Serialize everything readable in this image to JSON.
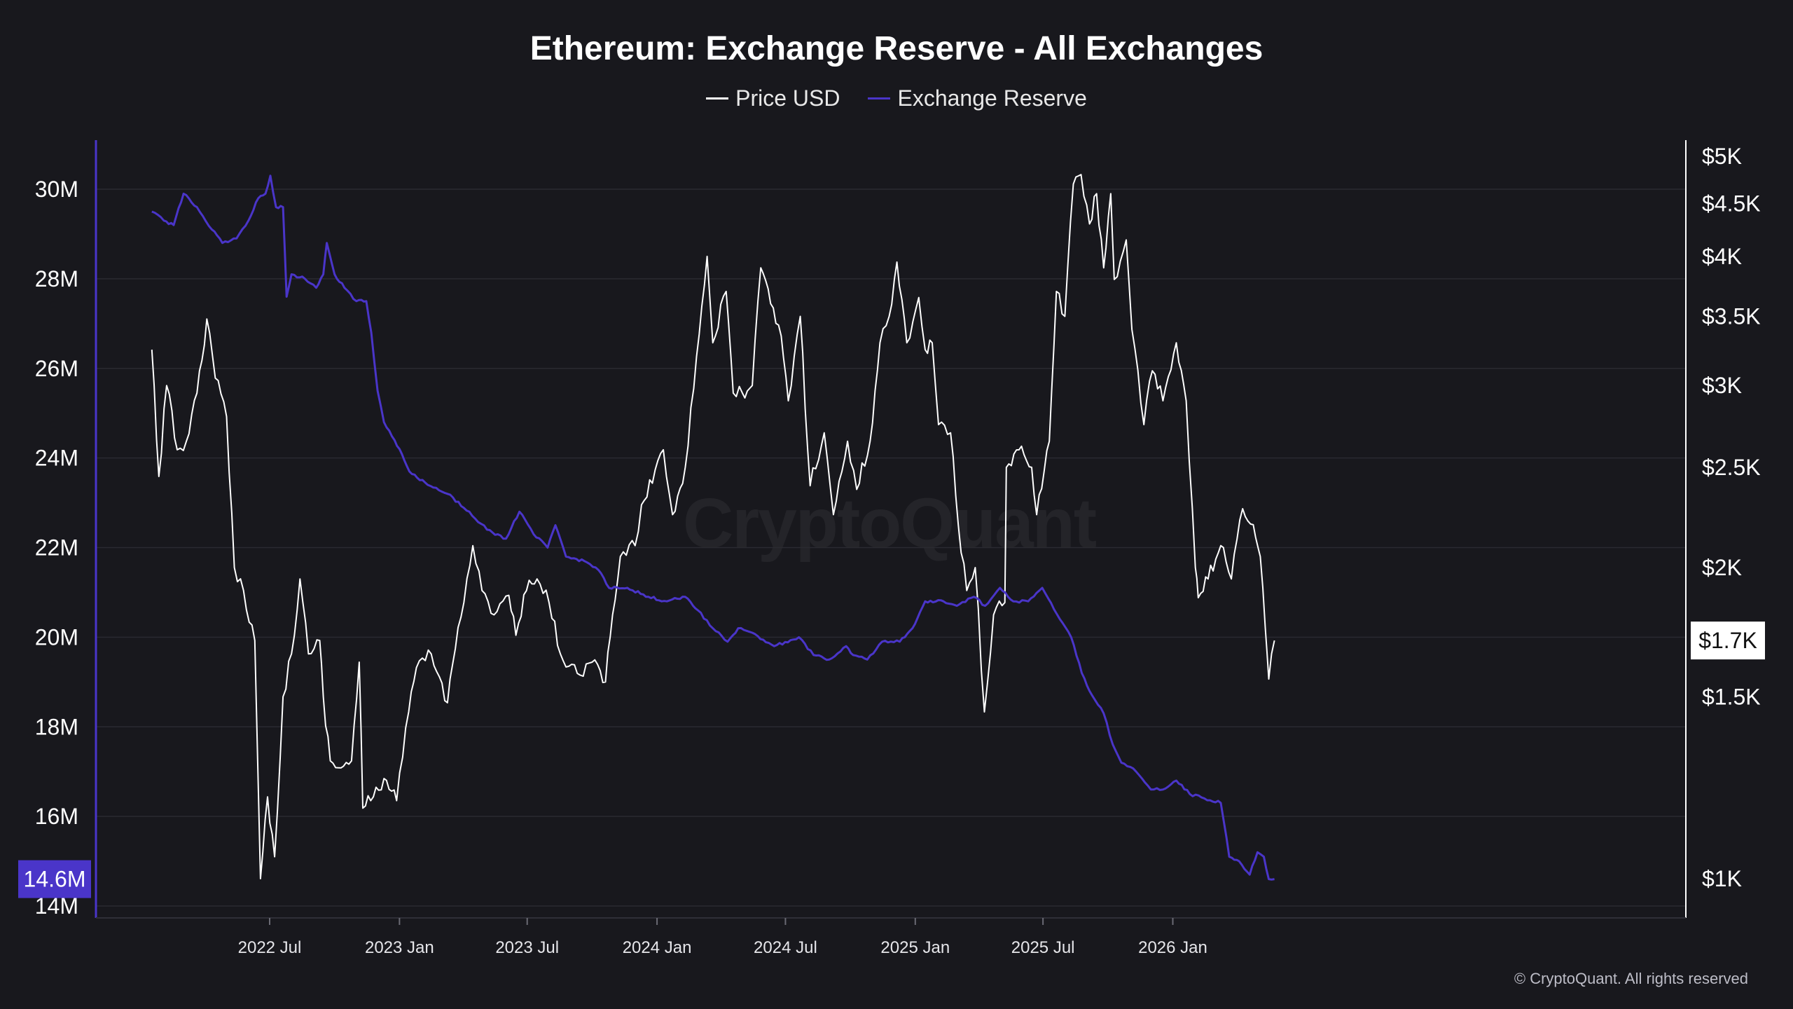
{
  "chart_data": {
    "type": "line",
    "title": "Ethereum: Exchange Reserve - All Exchanges",
    "legend_position": "top-center",
    "grid": true,
    "x_ticks": [
      "2022 Jul",
      "2023 Jan",
      "2023 Jul",
      "2024 Jan",
      "2024 Jul",
      "2025 Jan",
      "2025 Jul",
      "2026 Jan"
    ],
    "x_range": [
      "2022-01-15",
      "2026-05-25"
    ],
    "y_left": {
      "ticks": [
        "30M",
        "28M",
        "26M",
        "24M",
        "22M",
        "20M",
        "18M",
        "16M",
        "14M"
      ],
      "tick_values": [
        30,
        28,
        26,
        24,
        22,
        20,
        18,
        16,
        14
      ],
      "unit": "M",
      "range": [
        14,
        30.4
      ],
      "current_label": "14.6M"
    },
    "y_right": {
      "scale": "log",
      "ticks": [
        "$5K",
        "$4.5K",
        "$4K",
        "$3.5K",
        "$3K",
        "$2.5K",
        "$2K",
        "$1.5K",
        "$1K"
      ],
      "tick_values": [
        5000,
        4500,
        4000,
        3500,
        3000,
        2500,
        2000,
        1500,
        1000
      ],
      "range": [
        950,
        5000
      ],
      "current_label": "$1.7K"
    },
    "series": [
      {
        "name": "Price USD",
        "axis": "right",
        "color": "#ffffff",
        "points": [
          [
            "2022-01-15",
            3250
          ],
          [
            "2022-01-25",
            2450
          ],
          [
            "2022-02-05",
            3000
          ],
          [
            "2022-02-20",
            2600
          ],
          [
            "2022-03-05",
            2650
          ],
          [
            "2022-03-20",
            2950
          ],
          [
            "2022-04-03",
            3480
          ],
          [
            "2022-04-15",
            3050
          ],
          [
            "2022-05-01",
            2800
          ],
          [
            "2022-05-12",
            2000
          ],
          [
            "2022-05-25",
            1900
          ],
          [
            "2022-06-10",
            1700
          ],
          [
            "2022-06-18",
            1000
          ],
          [
            "2022-06-28",
            1200
          ],
          [
            "2022-07-08",
            1050
          ],
          [
            "2022-07-20",
            1500
          ],
          [
            "2022-08-01",
            1650
          ],
          [
            "2022-08-13",
            1950
          ],
          [
            "2022-08-25",
            1650
          ],
          [
            "2022-09-10",
            1700
          ],
          [
            "2022-09-15",
            1500
          ],
          [
            "2022-09-25",
            1300
          ],
          [
            "2022-10-10",
            1280
          ],
          [
            "2022-10-25",
            1300
          ],
          [
            "2022-11-05",
            1620
          ],
          [
            "2022-11-10",
            1170
          ],
          [
            "2022-11-25",
            1200
          ],
          [
            "2022-12-10",
            1250
          ],
          [
            "2022-12-28",
            1190
          ],
          [
            "2023-01-14",
            1450
          ],
          [
            "2023-01-25",
            1600
          ],
          [
            "2023-02-15",
            1650
          ],
          [
            "2023-03-10",
            1480
          ],
          [
            "2023-03-25",
            1750
          ],
          [
            "2023-04-15",
            2100
          ],
          [
            "2023-04-28",
            1900
          ],
          [
            "2023-05-15",
            1800
          ],
          [
            "2023-06-05",
            1880
          ],
          [
            "2023-06-15",
            1720
          ],
          [
            "2023-06-30",
            1900
          ],
          [
            "2023-07-15",
            1950
          ],
          [
            "2023-08-01",
            1850
          ],
          [
            "2023-08-17",
            1650
          ],
          [
            "2023-09-10",
            1580
          ],
          [
            "2023-10-01",
            1620
          ],
          [
            "2023-10-20",
            1550
          ],
          [
            "2023-10-30",
            1800
          ],
          [
            "2023-11-10",
            2050
          ],
          [
            "2023-12-01",
            2100
          ],
          [
            "2023-12-10",
            2300
          ],
          [
            "2024-01-10",
            2600
          ],
          [
            "2024-01-23",
            2250
          ],
          [
            "2024-02-10",
            2500
          ],
          [
            "2024-02-26",
            3200
          ],
          [
            "2024-03-12",
            4000
          ],
          [
            "2024-03-20",
            3300
          ],
          [
            "2024-04-08",
            3700
          ],
          [
            "2024-04-18",
            2950
          ],
          [
            "2024-05-01",
            2950
          ],
          [
            "2024-05-15",
            3000
          ],
          [
            "2024-05-27",
            3900
          ],
          [
            "2024-06-10",
            3600
          ],
          [
            "2024-06-25",
            3350
          ],
          [
            "2024-07-05",
            2900
          ],
          [
            "2024-07-22",
            3500
          ],
          [
            "2024-08-05",
            2400
          ],
          [
            "2024-08-25",
            2700
          ],
          [
            "2024-09-07",
            2250
          ],
          [
            "2024-09-27",
            2650
          ],
          [
            "2024-10-10",
            2380
          ],
          [
            "2024-10-29",
            2650
          ],
          [
            "2024-11-12",
            3300
          ],
          [
            "2024-11-25",
            3500
          ],
          [
            "2024-12-06",
            3950
          ],
          [
            "2024-12-20",
            3300
          ],
          [
            "2025-01-06",
            3650
          ],
          [
            "2025-01-15",
            3250
          ],
          [
            "2025-01-25",
            3300
          ],
          [
            "2025-02-03",
            2750
          ],
          [
            "2025-02-20",
            2700
          ],
          [
            "2025-03-03",
            2200
          ],
          [
            "2025-03-15",
            1900
          ],
          [
            "2025-03-27",
            2000
          ],
          [
            "2025-04-09",
            1450
          ],
          [
            "2025-04-22",
            1800
          ],
          [
            "2025-05-08",
            1850
          ],
          [
            "2025-05-10",
            2500
          ],
          [
            "2025-05-28",
            2600
          ],
          [
            "2025-06-15",
            2500
          ],
          [
            "2025-06-22",
            2250
          ],
          [
            "2025-07-10",
            2650
          ],
          [
            "2025-07-20",
            3700
          ],
          [
            "2025-08-01",
            3500
          ],
          [
            "2025-08-13",
            4700
          ],
          [
            "2025-08-24",
            4800
          ],
          [
            "2025-09-05",
            4300
          ],
          [
            "2025-09-15",
            4600
          ],
          [
            "2025-09-25",
            3900
          ],
          [
            "2025-10-05",
            4600
          ],
          [
            "2025-10-10",
            3800
          ],
          [
            "2025-10-27",
            4150
          ],
          [
            "2025-11-04",
            3400
          ],
          [
            "2025-11-21",
            2750
          ],
          [
            "2025-12-03",
            3100
          ],
          [
            "2025-12-18",
            2900
          ],
          [
            "2026-01-06",
            3300
          ],
          [
            "2026-01-20",
            2900
          ],
          [
            "2026-02-02",
            2000
          ],
          [
            "2026-02-06",
            1870
          ],
          [
            "2026-02-20",
            1950
          ],
          [
            "2026-03-10",
            2100
          ],
          [
            "2026-03-25",
            1950
          ],
          [
            "2026-04-10",
            2280
          ],
          [
            "2026-04-25",
            2200
          ],
          [
            "2026-05-05",
            2050
          ],
          [
            "2026-05-12",
            1750
          ],
          [
            "2026-05-17",
            1560
          ],
          [
            "2026-05-25",
            1700
          ]
        ]
      },
      {
        "name": "Exchange Reserve",
        "axis": "left",
        "color": "#4a35c9",
        "points": [
          [
            "2022-01-15",
            29.5
          ],
          [
            "2022-02-01",
            29.3
          ],
          [
            "2022-02-15",
            29.2
          ],
          [
            "2022-03-01",
            29.9
          ],
          [
            "2022-03-20",
            29.6
          ],
          [
            "2022-04-10",
            29.1
          ],
          [
            "2022-04-25",
            28.8
          ],
          [
            "2022-05-15",
            28.9
          ],
          [
            "2022-06-01",
            29.3
          ],
          [
            "2022-06-15",
            29.8
          ],
          [
            "2022-06-25",
            29.9
          ],
          [
            "2022-07-02",
            30.3
          ],
          [
            "2022-07-10",
            29.6
          ],
          [
            "2022-07-20",
            29.6
          ],
          [
            "2022-07-25",
            27.6
          ],
          [
            "2022-08-01",
            28.1
          ],
          [
            "2022-08-20",
            28.0
          ],
          [
            "2022-09-05",
            27.8
          ],
          [
            "2022-09-15",
            28.1
          ],
          [
            "2022-09-20",
            28.8
          ],
          [
            "2022-10-01",
            28.1
          ],
          [
            "2022-10-15",
            27.8
          ],
          [
            "2022-11-01",
            27.5
          ],
          [
            "2022-11-15",
            27.5
          ],
          [
            "2022-11-22",
            26.8
          ],
          [
            "2022-12-01",
            25.5
          ],
          [
            "2022-12-10",
            24.8
          ],
          [
            "2022-12-25",
            24.4
          ],
          [
            "2023-01-01",
            24.2
          ],
          [
            "2023-01-15",
            23.7
          ],
          [
            "2023-02-10",
            23.4
          ],
          [
            "2023-03-10",
            23.2
          ],
          [
            "2023-04-10",
            22.8
          ],
          [
            "2023-05-05",
            22.4
          ],
          [
            "2023-06-01",
            22.2
          ],
          [
            "2023-06-20",
            22.8
          ],
          [
            "2023-07-10",
            22.3
          ],
          [
            "2023-07-30",
            22.0
          ],
          [
            "2023-08-10",
            22.5
          ],
          [
            "2023-08-25",
            21.8
          ],
          [
            "2023-09-20",
            21.7
          ],
          [
            "2023-10-10",
            21.5
          ],
          [
            "2023-10-25",
            21.1
          ],
          [
            "2023-11-20",
            21.1
          ],
          [
            "2023-12-20",
            20.9
          ],
          [
            "2024-01-15",
            20.8
          ],
          [
            "2024-02-10",
            20.9
          ],
          [
            "2024-02-28",
            20.6
          ],
          [
            "2024-03-20",
            20.2
          ],
          [
            "2024-04-10",
            19.9
          ],
          [
            "2024-04-25",
            20.2
          ],
          [
            "2024-05-15",
            20.1
          ],
          [
            "2024-06-15",
            19.8
          ],
          [
            "2024-07-20",
            20.0
          ],
          [
            "2024-08-10",
            19.6
          ],
          [
            "2024-09-01",
            19.5
          ],
          [
            "2024-09-25",
            19.8
          ],
          [
            "2024-10-05",
            19.6
          ],
          [
            "2024-10-25",
            19.5
          ],
          [
            "2024-11-15",
            19.9
          ],
          [
            "2024-12-10",
            19.9
          ],
          [
            "2024-12-28",
            20.2
          ],
          [
            "2025-01-15",
            20.8
          ],
          [
            "2025-02-10",
            20.8
          ],
          [
            "2025-03-01",
            20.7
          ],
          [
            "2025-03-25",
            20.9
          ],
          [
            "2025-04-10",
            20.7
          ],
          [
            "2025-05-01",
            21.1
          ],
          [
            "2025-05-20",
            20.8
          ],
          [
            "2025-06-10",
            20.8
          ],
          [
            "2025-06-30",
            21.1
          ],
          [
            "2025-07-25",
            20.4
          ],
          [
            "2025-08-10",
            20.0
          ],
          [
            "2025-08-25",
            19.2
          ],
          [
            "2025-09-05",
            18.8
          ],
          [
            "2025-09-25",
            18.3
          ],
          [
            "2025-10-08",
            17.6
          ],
          [
            "2025-10-20",
            17.2
          ],
          [
            "2025-11-10",
            17.0
          ],
          [
            "2025-12-01",
            16.6
          ],
          [
            "2025-12-18",
            16.6
          ],
          [
            "2026-01-06",
            16.8
          ],
          [
            "2026-01-25",
            16.5
          ],
          [
            "2026-02-15",
            16.4
          ],
          [
            "2026-03-10",
            16.3
          ],
          [
            "2026-03-22",
            15.1
          ],
          [
            "2026-04-05",
            15.0
          ],
          [
            "2026-04-20",
            14.7
          ],
          [
            "2026-05-01",
            15.2
          ],
          [
            "2026-05-10",
            15.1
          ],
          [
            "2026-05-17",
            14.6
          ],
          [
            "2026-05-25",
            14.6
          ]
        ]
      }
    ]
  },
  "legend": {
    "price_label": "Price USD",
    "reserve_label": "Exchange Reserve"
  },
  "watermark": "CryptoQuant",
  "copyright": "© CryptoQuant. All rights reserved"
}
